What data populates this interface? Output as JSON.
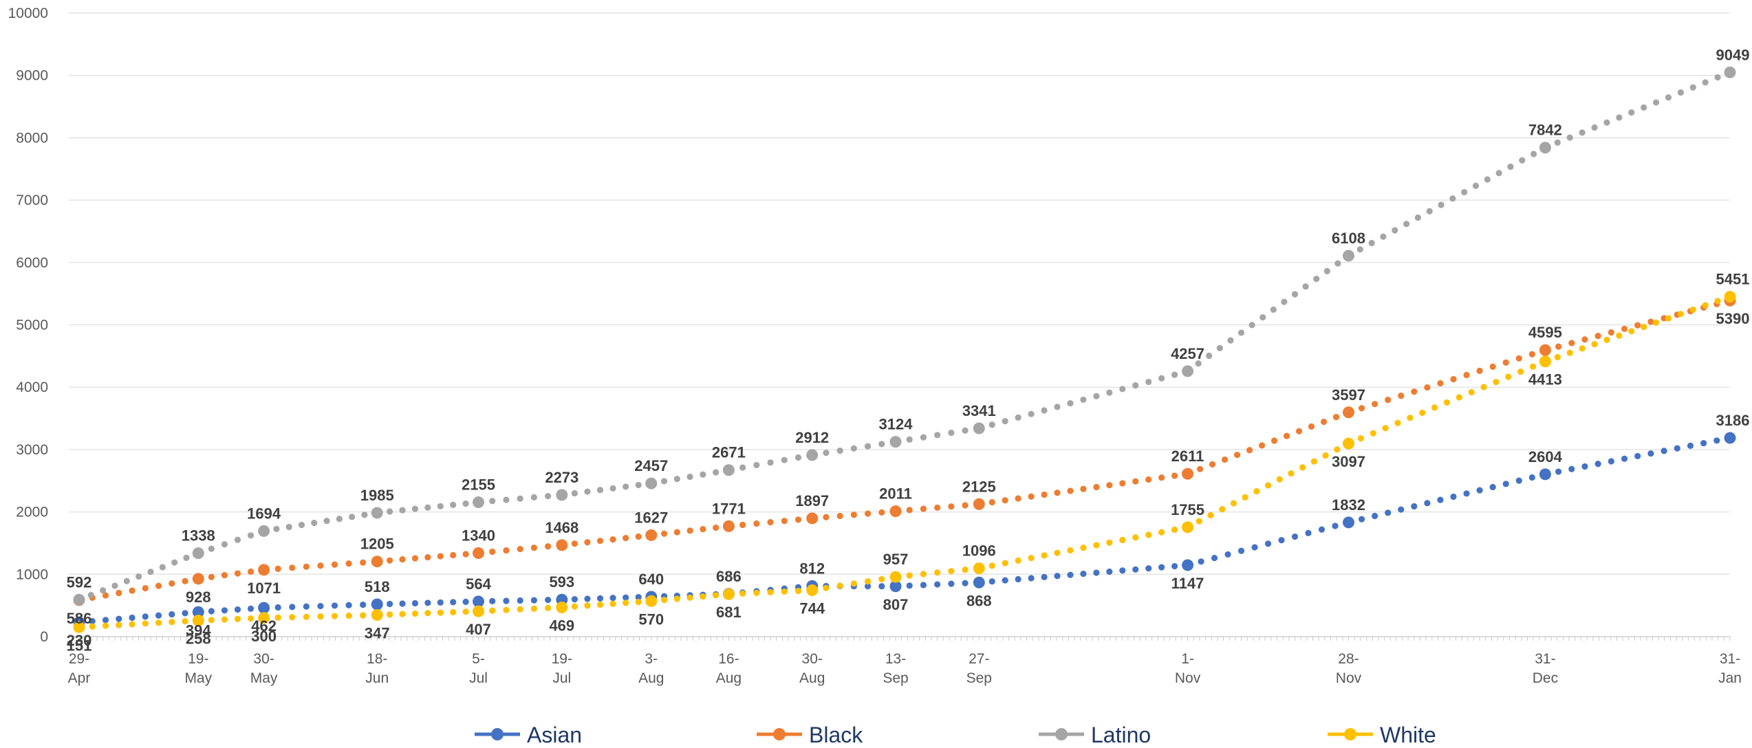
{
  "chart_data": {
    "type": "line",
    "title": "",
    "xlabel": "",
    "ylabel": "",
    "ylim": [
      0,
      10000
    ],
    "yticks": [
      "0",
      "1000",
      "2000",
      "3000",
      "4000",
      "5000",
      "6000",
      "7000",
      "8000",
      "9000",
      "10000"
    ],
    "x": [
      "2020-04-29",
      "2020-05-19",
      "2020-05-30",
      "2020-06-18",
      "2020-07-05",
      "2020-07-19",
      "2020-08-03",
      "2020-08-16",
      "2020-08-30",
      "2020-09-13",
      "2020-09-27",
      "2020-11-01",
      "2020-11-28",
      "2020-12-31",
      "2021-01-31"
    ],
    "tick_labels": [
      [
        "29-",
        "Apr"
      ],
      [
        "19-",
        "May"
      ],
      [
        "30-",
        "May"
      ],
      [
        "18-",
        "Jun"
      ],
      [
        "5-",
        "Jul"
      ],
      [
        "19-",
        "Jul"
      ],
      [
        "3-",
        "Aug"
      ],
      [
        "16-",
        "Aug"
      ],
      [
        "30-",
        "Aug"
      ],
      [
        "13-",
        "Sep"
      ],
      [
        "27-",
        "Sep"
      ],
      [
        "1-",
        "Nov"
      ],
      [
        "28-",
        "Nov"
      ],
      [
        "31-",
        "Dec"
      ],
      [
        "31-",
        "Jan"
      ]
    ],
    "grid": true,
    "legend": "bottom",
    "series": [
      {
        "name": "Asian",
        "color": "#4472c4",
        "values": [
          230,
          394,
          462,
          518,
          564,
          593,
          640,
          686,
          812,
          807,
          868,
          1147,
          1832,
          2604,
          3186
        ]
      },
      {
        "name": "Black",
        "color": "#ed7d31",
        "values": [
          586,
          928,
          1071,
          1205,
          1340,
          1468,
          1627,
          1771,
          1897,
          2011,
          2125,
          2611,
          3597,
          4595,
          5390
        ]
      },
      {
        "name": "Latino",
        "color": "#a5a5a5",
        "values": [
          592,
          1338,
          1694,
          1985,
          2155,
          2273,
          2457,
          2671,
          2912,
          3124,
          3341,
          4257,
          6108,
          7842,
          9049
        ]
      },
      {
        "name": "White",
        "color": "#ffc000",
        "values": [
          151,
          258,
          300,
          347,
          407,
          469,
          570,
          681,
          744,
          957,
          1096,
          1755,
          3097,
          4413,
          5451
        ]
      }
    ],
    "data_labels": [
      {
        "series": "Asian",
        "labels": [
          "230",
          "394",
          "462",
          "518",
          "564",
          "593",
          "640",
          "686",
          "812",
          "807",
          "868",
          "1147",
          "1832",
          "2604",
          "3186"
        ]
      },
      {
        "series": "Black",
        "labels": [
          "586",
          "928",
          "1071",
          "1205",
          "1340",
          "1468",
          "1627",
          "1771",
          "1897",
          "2011",
          "2125",
          "2611",
          "3597",
          "4595",
          "5390"
        ]
      },
      {
        "series": "Latino",
        "labels": [
          "592",
          "1338",
          "1694",
          "1985",
          "2155",
          "2273",
          "2457",
          "2671",
          "2912",
          "3124",
          "3341",
          "4257",
          "6108",
          "7842",
          "9049"
        ]
      },
      {
        "series": "White",
        "labels": [
          "151",
          "258",
          "300",
          "347",
          "407",
          "469",
          "570",
          "681",
          "744",
          "957",
          "1096",
          "1755",
          "3097",
          "4413",
          "5451"
        ]
      }
    ]
  }
}
